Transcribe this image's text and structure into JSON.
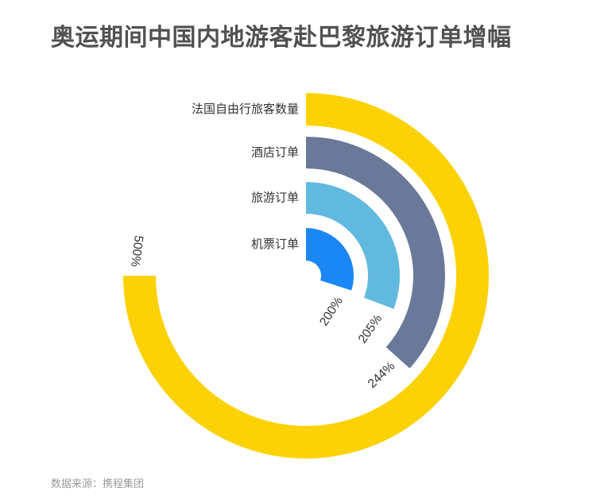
{
  "chart_data": {
    "type": "bar",
    "variant": "radial",
    "title": "奥运期间中国内地游客赴巴黎旅游订单增幅",
    "categories": [
      "法国自由行旅客数量",
      "酒店订单",
      "旅游订单",
      "机票订单"
    ],
    "values": [
      500,
      244,
      205,
      200
    ],
    "value_labels": [
      "500%",
      "244%",
      "205%",
      "200%"
    ],
    "colors": [
      "#FCD205",
      "#6A7899",
      "#62B9DF",
      "#1B87F5"
    ],
    "max_value": 500,
    "max_angle_deg": 270,
    "start_angle": "12-o-clock",
    "direction": "clockwise",
    "legend": false,
    "grid": false,
    "source": "数据来源：携程集团"
  }
}
